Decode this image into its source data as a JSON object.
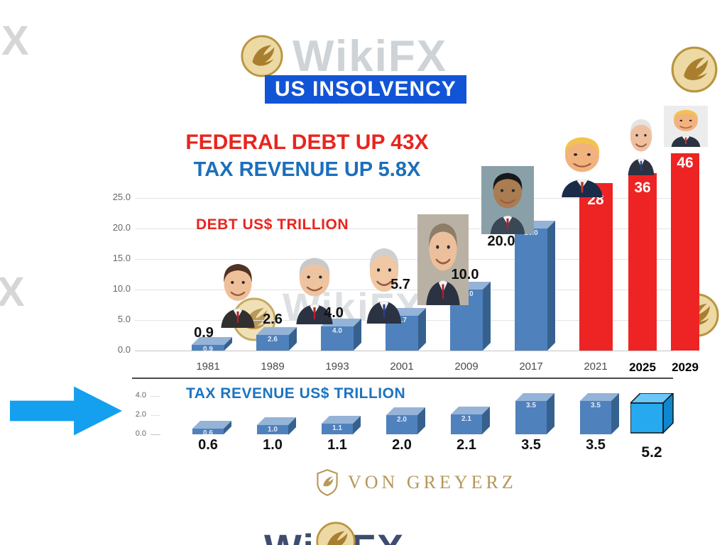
{
  "title": "US INSOLVENCY",
  "headlines": {
    "debt": "FEDERAL DEBT UP 43X",
    "tax": "TAX REVENUE UP 5.8X"
  },
  "watermarks": {
    "brand": "WikiFX",
    "edge_letter": "X",
    "logo": "gold-phoenix-coin"
  },
  "chart_data": [
    {
      "type": "bar",
      "title": "DEBT US$ TRILLION",
      "categories": [
        "1981",
        "1989",
        "1993",
        "2001",
        "2009",
        "2017",
        "2021",
        "2025",
        "2029"
      ],
      "values": [
        0.9,
        2.6,
        4.0,
        5.7,
        10.0,
        20.0,
        28,
        36,
        46
      ],
      "bar_labels": [
        "0.9",
        "2.6",
        "4.0",
        "5.7",
        "10.0",
        "20.0",
        "28",
        "36",
        "46"
      ],
      "bar_styles": [
        "blue",
        "blue",
        "blue",
        "blue",
        "blue",
        "blue",
        "red",
        "red",
        "red"
      ],
      "yticks": [
        "25.0",
        "20.0",
        "15.0",
        "10.0",
        "5.0",
        "0.0"
      ],
      "ylim": [
        0,
        25
      ],
      "grid": true,
      "legend_position": "none",
      "presidents": [
        "Ronald Reagan",
        "George H. W. Bush",
        "Bill Clinton",
        "George W. Bush",
        "Barack Obama",
        "Donald Trump",
        "Joe Biden",
        "Donald Trump"
      ]
    },
    {
      "type": "bar",
      "title": "TAX REVENUE US$ TRILLION",
      "values": [
        0.6,
        1.0,
        1.1,
        2.0,
        2.1,
        3.5,
        3.5,
        5.2
      ],
      "bar_labels": [
        "0.6",
        "1.0",
        "1.1",
        "2.0",
        "2.1",
        "3.5",
        "3.5",
        "5.2"
      ],
      "bar_styles": [
        "blue",
        "blue",
        "blue",
        "blue",
        "blue",
        "blue",
        "blue",
        "cube"
      ],
      "yticks": [
        "4.0",
        "2.0",
        "0.0"
      ],
      "ylim": [
        0,
        4
      ],
      "grid": false
    }
  ],
  "footer": {
    "brand": "VON GREYERZ"
  },
  "colors": {
    "title_bg": "#1254d6",
    "headline_red": "#e8251f",
    "headline_blue": "#1c6fba",
    "bar_blue": "#4f81bd",
    "bar_red": "#ee2424",
    "cube_blue": "#27a9f0",
    "arrow_blue": "#14a0ee",
    "brand_gold": "#b4975a",
    "watermark_gray": "#cfcfcf"
  }
}
